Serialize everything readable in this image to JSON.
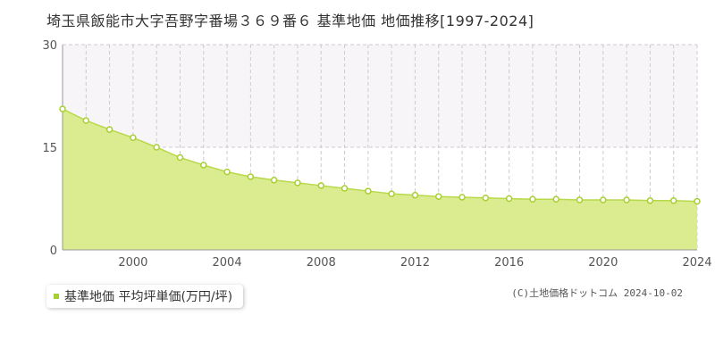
{
  "title": "埼玉県飯能市大字吾野字番場３６９番６ 基準地価 地価推移[1997-2024]",
  "legend_label": "基準地価 平均坪単価(万円/坪)",
  "copyright": "(C)土地価格ドットコム 2024-10-02",
  "colors": {
    "fill": "#dbeb8f",
    "line": "#b8d94a",
    "marker": "#a8cf32",
    "band": "#f7f5f8",
    "grid": "#cccccc",
    "axis": "#999999"
  },
  "chart_data": {
    "type": "area",
    "x": [
      1997,
      1998,
      1999,
      2000,
      2001,
      2002,
      2003,
      2004,
      2005,
      2006,
      2007,
      2008,
      2009,
      2010,
      2011,
      2012,
      2013,
      2014,
      2015,
      2016,
      2017,
      2018,
      2019,
      2020,
      2021,
      2022,
      2023,
      2024
    ],
    "series": [
      {
        "name": "基準地価 平均坪単価(万円/坪)",
        "values": [
          20.6,
          18.9,
          17.6,
          16.4,
          15.0,
          13.5,
          12.4,
          11.4,
          10.7,
          10.2,
          9.8,
          9.4,
          9.0,
          8.6,
          8.2,
          8.0,
          7.8,
          7.7,
          7.6,
          7.5,
          7.4,
          7.4,
          7.3,
          7.3,
          7.3,
          7.2,
          7.2,
          7.1
        ]
      }
    ],
    "x_ticks": [
      "2000",
      "2004",
      "2008",
      "2012",
      "2016",
      "2020",
      "2024"
    ],
    "y_ticks": [
      "0",
      "15",
      "30"
    ],
    "xlim": [
      1997,
      2024
    ],
    "ylim": [
      0,
      30
    ],
    "grid": true,
    "legend": "bottom-left"
  }
}
